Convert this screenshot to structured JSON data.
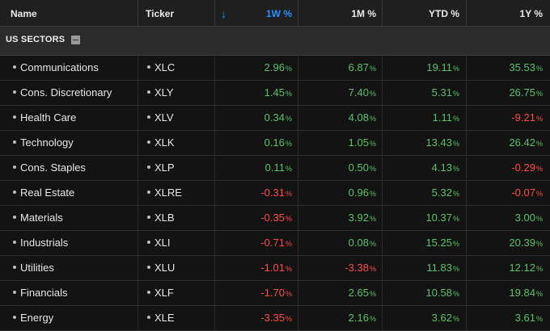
{
  "header": {
    "name": "Name",
    "ticker": "Ticker",
    "sort_icon": "arrow-down-icon",
    "w1": "1W %",
    "m1": "1M %",
    "ytd": "YTD %",
    "y1": "1Y %"
  },
  "section": {
    "title": "US SECTORS",
    "collapse_icon": "minus-square-icon"
  },
  "colors": {
    "positive": "#5cc26a",
    "negative": "#ff4b4b",
    "accent": "#1e8cff"
  },
  "rows": [
    {
      "name": "Communications",
      "ticker": "XLC",
      "w1": "2.96",
      "m1": "6.87",
      "ytd": "19.11",
      "y1": "35.53"
    },
    {
      "name": "Cons. Discretionary",
      "ticker": "XLY",
      "w1": "1.45",
      "m1": "7.40",
      "ytd": "5.31",
      "y1": "26.75"
    },
    {
      "name": "Health Care",
      "ticker": "XLV",
      "w1": "0.34",
      "m1": "4.08",
      "ytd": "1.11",
      "y1": "-9.21"
    },
    {
      "name": "Technology",
      "ticker": "XLK",
      "w1": "0.16",
      "m1": "1.05",
      "ytd": "13.43",
      "y1": "26.42"
    },
    {
      "name": "Cons. Staples",
      "ticker": "XLP",
      "w1": "0.11",
      "m1": "0.50",
      "ytd": "4.13",
      "y1": "-0.29"
    },
    {
      "name": "Real Estate",
      "ticker": "XLRE",
      "w1": "-0.31",
      "m1": "0.96",
      "ytd": "5.32",
      "y1": "-0.07"
    },
    {
      "name": "Materials",
      "ticker": "XLB",
      "w1": "-0.35",
      "m1": "3.92",
      "ytd": "10.37",
      "y1": "3.00"
    },
    {
      "name": "Industrials",
      "ticker": "XLI",
      "w1": "-0.71",
      "m1": "0.08",
      "ytd": "15.25",
      "y1": "20.39"
    },
    {
      "name": "Utilities",
      "ticker": "XLU",
      "w1": "-1.01",
      "m1": "-3.38",
      "ytd": "11.83",
      "y1": "12.12"
    },
    {
      "name": "Financials",
      "ticker": "XLF",
      "w1": "-1.70",
      "m1": "2.65",
      "ytd": "10.58",
      "y1": "19.84"
    },
    {
      "name": "Energy",
      "ticker": "XLE",
      "w1": "-3.35",
      "m1": "2.16",
      "ytd": "3.62",
      "y1": "3.61"
    }
  ],
  "pct_suffix": "%"
}
